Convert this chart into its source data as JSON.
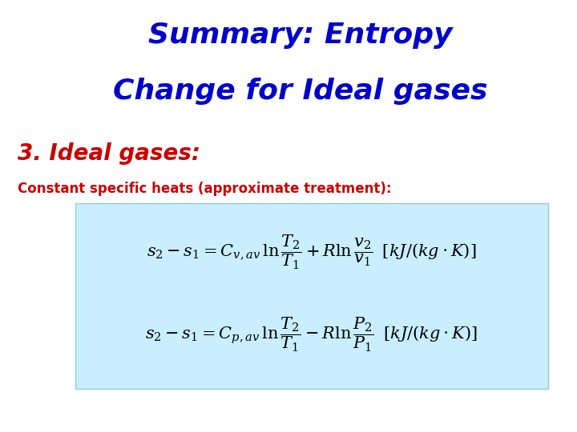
{
  "title_line1": "Summary: Entropy",
  "title_line2": "Change for Ideal gases",
  "title_color": "#0000CC",
  "subtitle": "3. Ideal gases:",
  "subtitle_color": "#CC0000",
  "body_text": "Constant specific heats (approximate treatment):",
  "body_color": "#CC0000",
  "box_bg_color": "#C8EEFF",
  "box_edge_color": "#99CCDD",
  "eq_color": "#000000",
  "bg_color": "#FFFFFF",
  "fig_width": 7.2,
  "fig_height": 5.4,
  "dpi": 100,
  "title_fontsize": 26,
  "subtitle_fontsize": 20,
  "body_fontsize": 12,
  "eq_fontsize": 15
}
